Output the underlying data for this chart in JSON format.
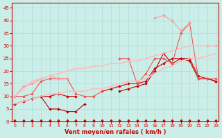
{
  "background_color": "#cceee8",
  "grid_color": "#aadddd",
  "xlabel": "Vent moyen/en rafales ( km/h )",
  "xlabel_color": "#cc0000",
  "tick_color": "#cc0000",
  "x_ticks": [
    0,
    1,
    2,
    3,
    4,
    5,
    6,
    7,
    8,
    9,
    10,
    11,
    12,
    13,
    14,
    15,
    16,
    17,
    18,
    19,
    20,
    21,
    22,
    23
  ],
  "ylim": [
    0,
    47
  ],
  "xlim": [
    -0.3,
    23.3
  ],
  "yticks": [
    0,
    5,
    10,
    15,
    20,
    25,
    30,
    35,
    40,
    45
  ],
  "lines": [
    {
      "label": "line_dark1",
      "color": "#bb0000",
      "x": [
        0,
        1,
        2,
        3,
        4,
        5,
        6,
        7,
        8,
        9,
        10,
        11,
        12,
        13,
        14,
        15,
        16,
        17,
        18,
        19,
        20,
        21,
        22,
        23
      ],
      "y": [
        7,
        8,
        9,
        10,
        5,
        5,
        4,
        4,
        7,
        null,
        null,
        null,
        12,
        13,
        14,
        15,
        20,
        27,
        23,
        25,
        24,
        17,
        17,
        16
      ],
      "marker": "D",
      "markersize": 2.0,
      "linewidth": 0.8
    },
    {
      "label": "line_dark2",
      "color": "#cc0000",
      "x": [
        0,
        1,
        2,
        3,
        4,
        5,
        6,
        7,
        8,
        9,
        10,
        11,
        12,
        13,
        14,
        15,
        16,
        17,
        18,
        19,
        20,
        21,
        22,
        23
      ],
      "y": [
        7,
        8,
        9,
        10,
        10,
        11,
        10,
        10,
        null,
        null,
        12,
        13,
        14,
        15,
        15,
        16,
        21,
        23,
        25,
        25,
        25,
        18,
        17,
        16
      ],
      "marker": "D",
      "markersize": 2.0,
      "linewidth": 0.8
    },
    {
      "label": "line_med1",
      "color": "#ee5555",
      "x": [
        0,
        1,
        2,
        3,
        4,
        5,
        6,
        7,
        8,
        9,
        10,
        11,
        12,
        13,
        14,
        15,
        16,
        17,
        18,
        19,
        20,
        21,
        22,
        23
      ],
      "y": [
        10,
        10,
        11,
        16,
        17,
        17,
        17,
        11,
        10,
        10,
        12,
        null,
        25,
        25,
        15,
        19,
        25,
        25,
        23,
        35,
        39,
        17,
        17,
        17
      ],
      "marker": "D",
      "markersize": 2.0,
      "linewidth": 0.8
    },
    {
      "label": "line_light1",
      "color": "#ff9999",
      "x": [
        0,
        1,
        2,
        3,
        4,
        5,
        6,
        7,
        8,
        9,
        10,
        11,
        12,
        13,
        14,
        15,
        16,
        17,
        18,
        19,
        20,
        21,
        22,
        23
      ],
      "y": [
        10,
        14,
        15,
        17,
        18,
        17,
        17,
        null,
        null,
        null,
        null,
        null,
        null,
        null,
        null,
        null,
        41,
        42,
        40,
        36,
        39,
        null,
        30,
        30
      ],
      "marker": "D",
      "markersize": 2.0,
      "linewidth": 0.8
    },
    {
      "label": "line_lightest1",
      "color": "#ffbbbb",
      "x": [
        0,
        1,
        2,
        3,
        4,
        5,
        6,
        7,
        8,
        9,
        10,
        11,
        12,
        13,
        14,
        15,
        16,
        17,
        18,
        19,
        20,
        21,
        22,
        23
      ],
      "y": [
        10,
        13,
        16,
        17,
        18,
        19,
        20,
        21,
        21,
        22,
        22,
        23,
        23,
        24,
        24,
        25,
        26,
        27,
        28,
        29,
        30,
        30,
        30,
        30
      ],
      "marker": null,
      "markersize": 0,
      "linewidth": 1.2
    },
    {
      "label": "line_lightest2",
      "color": "#ffbbbb",
      "x": [
        0,
        1,
        2,
        3,
        4,
        5,
        6,
        7,
        8,
        9,
        10,
        11,
        12,
        13,
        14,
        15,
        16,
        17,
        18,
        19,
        20,
        21,
        22,
        23
      ],
      "y": [
        7,
        8,
        9,
        10,
        11,
        11,
        12,
        12,
        12,
        13,
        13,
        14,
        15,
        16,
        16,
        17,
        19,
        21,
        22,
        24,
        25,
        25,
        26,
        27
      ],
      "marker": null,
      "markersize": 0,
      "linewidth": 1.2
    }
  ]
}
